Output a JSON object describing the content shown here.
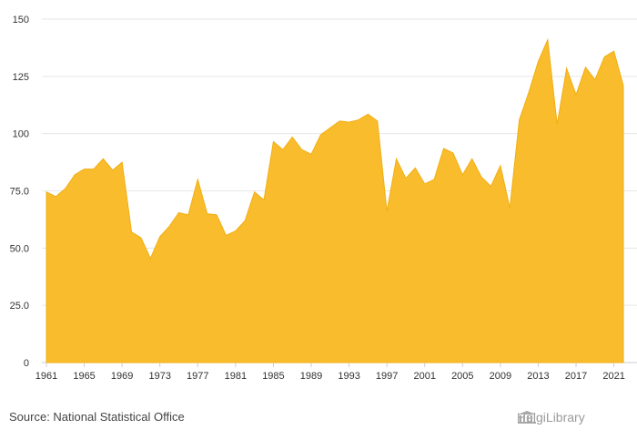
{
  "source": "Source: National Statistical Office",
  "logo_text": "HelgiLibrary",
  "colors": {
    "area": "#F9BC2D",
    "area_stroke": "#F2AE10",
    "grid": "#e6e6e6",
    "text": "#333333"
  },
  "chart_data": {
    "type": "area",
    "title": "",
    "xlabel": "",
    "ylabel": "",
    "ylim": [
      0,
      150
    ],
    "xlim": [
      1961,
      2022
    ],
    "y_ticks": [
      0,
      25.0,
      50.0,
      75.0,
      100,
      125,
      150
    ],
    "y_tick_labels": [
      "0",
      "25.0",
      "50.0",
      "75.0",
      "100",
      "125",
      "150"
    ],
    "x_ticks": [
      1961,
      1965,
      1969,
      1973,
      1977,
      1981,
      1985,
      1989,
      1993,
      1997,
      2001,
      2005,
      2009,
      2013,
      2017,
      2021
    ],
    "x_tick_labels": [
      "1961",
      "1965",
      "1969",
      "1973",
      "1977",
      "1981",
      "1985",
      "1989",
      "1993",
      "1997",
      "2001",
      "2005",
      "2009",
      "2013",
      "2017",
      "2021"
    ],
    "grid": true,
    "legend": "none",
    "series": [
      {
        "x": [
          1961,
          1962,
          1963,
          1964,
          1965,
          1966,
          1967,
          1968,
          1969,
          1970,
          1971,
          1972,
          1973,
          1974,
          1975,
          1976,
          1977,
          1978,
          1979,
          1980,
          1981,
          1982,
          1983,
          1984,
          1985,
          1986,
          1987,
          1988,
          1989,
          1990,
          1991,
          1992,
          1993,
          1994,
          1995,
          1996,
          1997,
          1998,
          1999,
          2000,
          2001,
          2002,
          2003,
          2004,
          2005,
          2006,
          2007,
          2008,
          2009,
          2010,
          2011,
          2012,
          2013,
          2014,
          2015,
          2016,
          2017,
          2018,
          2019,
          2020,
          2021,
          2022
        ],
        "values": [
          74.5,
          72.5,
          76,
          82,
          84.5,
          84.5,
          89,
          84,
          87.5,
          57,
          54.5,
          45.5,
          55,
          59.5,
          65.5,
          64.5,
          80,
          65,
          64.5,
          55.5,
          57.5,
          62,
          74.5,
          71,
          96.5,
          93,
          98.5,
          93,
          91,
          99.5,
          102.5,
          105.5,
          105,
          106,
          108.5,
          105.5,
          66,
          89,
          80.5,
          85,
          78,
          80,
          93.5,
          91.5,
          82,
          89,
          81,
          77,
          86,
          67.5,
          106,
          118,
          131.5,
          141,
          104,
          128.5,
          117,
          129,
          123.5,
          133.5,
          136,
          121
        ]
      }
    ]
  }
}
